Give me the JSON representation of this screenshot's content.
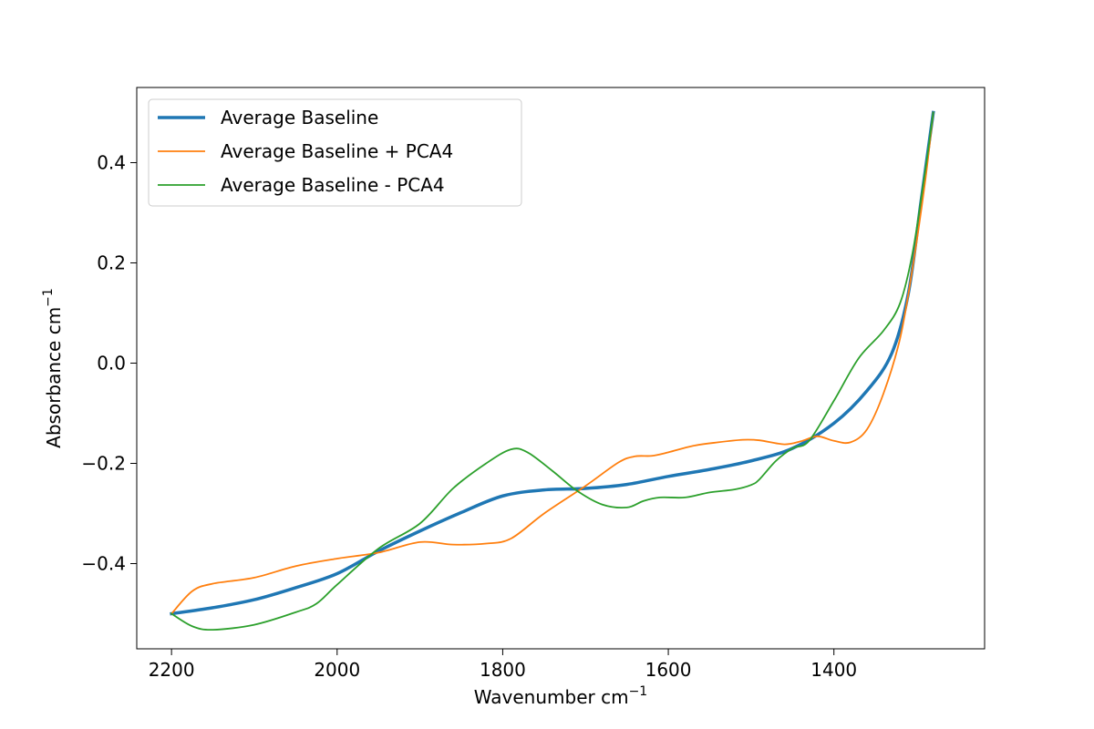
{
  "chart_data": {
    "type": "line",
    "xlabel": "Wavenumber cm",
    "xlabel_sup": "−1",
    "ylabel": "Absorbance cm",
    "ylabel_sup": "−1",
    "xlim": [
      2242,
      1218
    ],
    "ylim": [
      -0.57,
      0.55
    ],
    "x_axis_reversed": true,
    "x_ticks": [
      2200,
      2000,
      1800,
      1600,
      1400
    ],
    "x_tick_labels": [
      "2200",
      "2000",
      "1800",
      "1600",
      "1400"
    ],
    "y_ticks": [
      -0.4,
      -0.2,
      0.0,
      0.2,
      0.4
    ],
    "y_tick_labels": [
      "−0.4",
      "−0.2",
      "0.0",
      "0.2",
      "0.4"
    ],
    "grid": false,
    "legend_position": "upper-left",
    "series": [
      {
        "name": "Average Baseline",
        "color": "#1f77b4",
        "emphasis": "thick",
        "x": [
          2200,
          2150,
          2100,
          2050,
          2000,
          1950,
          1900,
          1850,
          1800,
          1750,
          1700,
          1650,
          1600,
          1550,
          1500,
          1450,
          1400,
          1360,
          1330,
          1310,
          1295,
          1280
        ],
        "y": [
          -0.5,
          -0.488,
          -0.472,
          -0.448,
          -0.42,
          -0.375,
          -0.335,
          -0.298,
          -0.265,
          -0.253,
          -0.25,
          -0.242,
          -0.226,
          -0.212,
          -0.195,
          -0.17,
          -0.12,
          -0.055,
          0.02,
          0.14,
          0.32,
          0.5
        ]
      },
      {
        "name": "Average Baseline + PCA4",
        "color": "#ff7f0e",
        "emphasis": "normal",
        "x": [
          2200,
          2175,
          2150,
          2100,
          2050,
          2000,
          1950,
          1900,
          1860,
          1820,
          1790,
          1750,
          1700,
          1660,
          1640,
          1620,
          1600,
          1570,
          1540,
          1510,
          1490,
          1460,
          1440,
          1420,
          1400,
          1380,
          1360,
          1340,
          1320,
          1305,
          1290,
          1280
        ],
        "y": [
          -0.5,
          -0.455,
          -0.44,
          -0.428,
          -0.405,
          -0.39,
          -0.378,
          -0.357,
          -0.362,
          -0.36,
          -0.35,
          -0.3,
          -0.245,
          -0.198,
          -0.186,
          -0.185,
          -0.178,
          -0.165,
          -0.158,
          -0.153,
          -0.154,
          -0.162,
          -0.156,
          -0.146,
          -0.155,
          -0.158,
          -0.132,
          -0.06,
          0.05,
          0.19,
          0.36,
          0.5
        ]
      },
      {
        "name": "Average Baseline - PCA4",
        "color": "#2ca02c",
        "emphasis": "normal",
        "x": [
          2200,
          2175,
          2150,
          2100,
          2050,
          2025,
          2000,
          1950,
          1900,
          1860,
          1820,
          1790,
          1770,
          1740,
          1710,
          1680,
          1650,
          1630,
          1610,
          1580,
          1550,
          1520,
          1500,
          1490,
          1470,
          1450,
          1430,
          1400,
          1370,
          1340,
          1320,
          1305,
          1290,
          1280
        ],
        "y": [
          -0.5,
          -0.525,
          -0.532,
          -0.522,
          -0.497,
          -0.48,
          -0.442,
          -0.37,
          -0.32,
          -0.25,
          -0.2,
          -0.172,
          -0.178,
          -0.215,
          -0.255,
          -0.282,
          -0.288,
          -0.275,
          -0.268,
          -0.268,
          -0.258,
          -0.252,
          -0.243,
          -0.232,
          -0.195,
          -0.17,
          -0.155,
          -0.075,
          0.01,
          0.065,
          0.12,
          0.22,
          0.38,
          0.5
        ]
      }
    ]
  }
}
